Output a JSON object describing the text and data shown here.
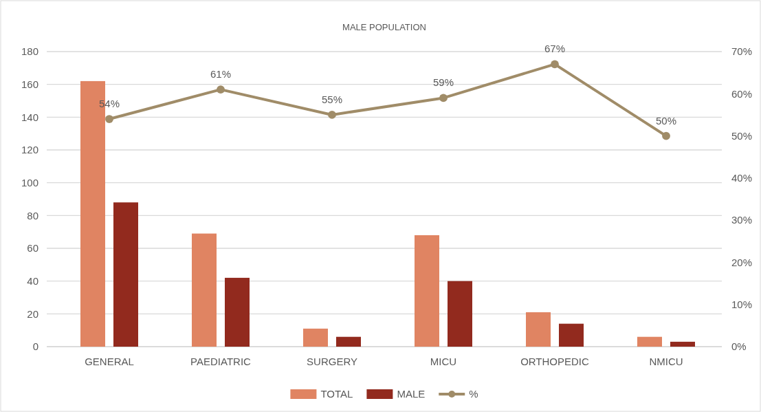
{
  "chart_data": {
    "type": "bar",
    "title": "MALE POPULATION",
    "categories": [
      "GENERAL",
      "PAEDIATRIC",
      "SURGERY",
      "MICU",
      "ORTHOPEDIC",
      "NMICU"
    ],
    "series": [
      {
        "name": "TOTAL",
        "color": "#e08462",
        "values": [
          162,
          69,
          11,
          68,
          21,
          6
        ]
      },
      {
        "name": "MALE",
        "color": "#922a1e",
        "values": [
          88,
          42,
          6,
          40,
          14,
          3
        ]
      },
      {
        "name": "%",
        "type": "line",
        "axis": "y2",
        "color": "#a08c68",
        "marker": "circle",
        "values": [
          54,
          61,
          55,
          59,
          67,
          50
        ],
        "value_labels": [
          "54%",
          "61%",
          "55%",
          "59%",
          "67%",
          "50%"
        ]
      }
    ],
    "ylim": [
      0,
      180
    ],
    "yticks": [
      0,
      20,
      40,
      60,
      80,
      100,
      120,
      140,
      160,
      180
    ],
    "y2lim": [
      0,
      70
    ],
    "y2ticks": [
      {
        "value": 0,
        "label": "0%"
      },
      {
        "value": 10,
        "label": "10%"
      },
      {
        "value": 20,
        "label": "20%"
      },
      {
        "value": 30,
        "label": "30%"
      },
      {
        "value": 40,
        "label": "40%"
      },
      {
        "value": 50,
        "label": "50%"
      },
      {
        "value": 60,
        "label": "60%"
      },
      {
        "value": 70,
        "label": "70%"
      }
    ],
    "grid": "y",
    "legend": "bottom"
  }
}
